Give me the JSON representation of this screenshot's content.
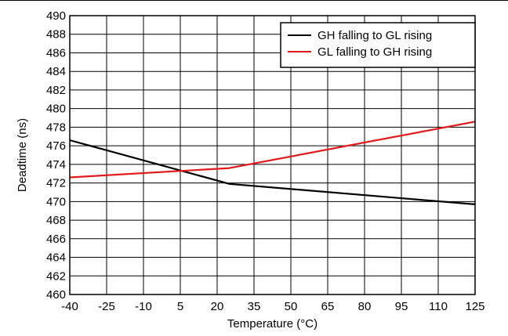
{
  "chart_data": {
    "type": "line",
    "title": "",
    "xlabel": "Temperature (°C)",
    "ylabel": "Deadtime (ns)",
    "xlim": [
      -40,
      125
    ],
    "ylim": [
      460,
      490
    ],
    "x_ticks": [
      -40,
      -25,
      -10,
      5,
      20,
      35,
      50,
      65,
      80,
      95,
      110,
      125
    ],
    "y_ticks": [
      460,
      462,
      464,
      466,
      468,
      470,
      472,
      474,
      476,
      478,
      480,
      482,
      484,
      486,
      488,
      490
    ],
    "x_tick_labels": [
      "-40",
      "-25",
      "-10",
      "5",
      "20",
      "35",
      "50",
      "65",
      "80",
      "95",
      "110",
      "125"
    ],
    "y_tick_labels": [
      "460",
      "462",
      "464",
      "466",
      "468",
      "470",
      "472",
      "474",
      "476",
      "478",
      "480",
      "482",
      "484",
      "486",
      "488",
      "490"
    ],
    "grid": true,
    "legend_position": "top-right",
    "series": [
      {
        "name": "GH falling to GL rising",
        "color": "#000000",
        "x": [
          -40,
          25,
          125
        ],
        "y": [
          476.6,
          471.9,
          469.7
        ]
      },
      {
        "name": "GL falling to GH rising",
        "color": "#e31a1c",
        "x": [
          -40,
          25,
          125
        ],
        "y": [
          472.6,
          473.6,
          478.6
        ]
      }
    ]
  }
}
